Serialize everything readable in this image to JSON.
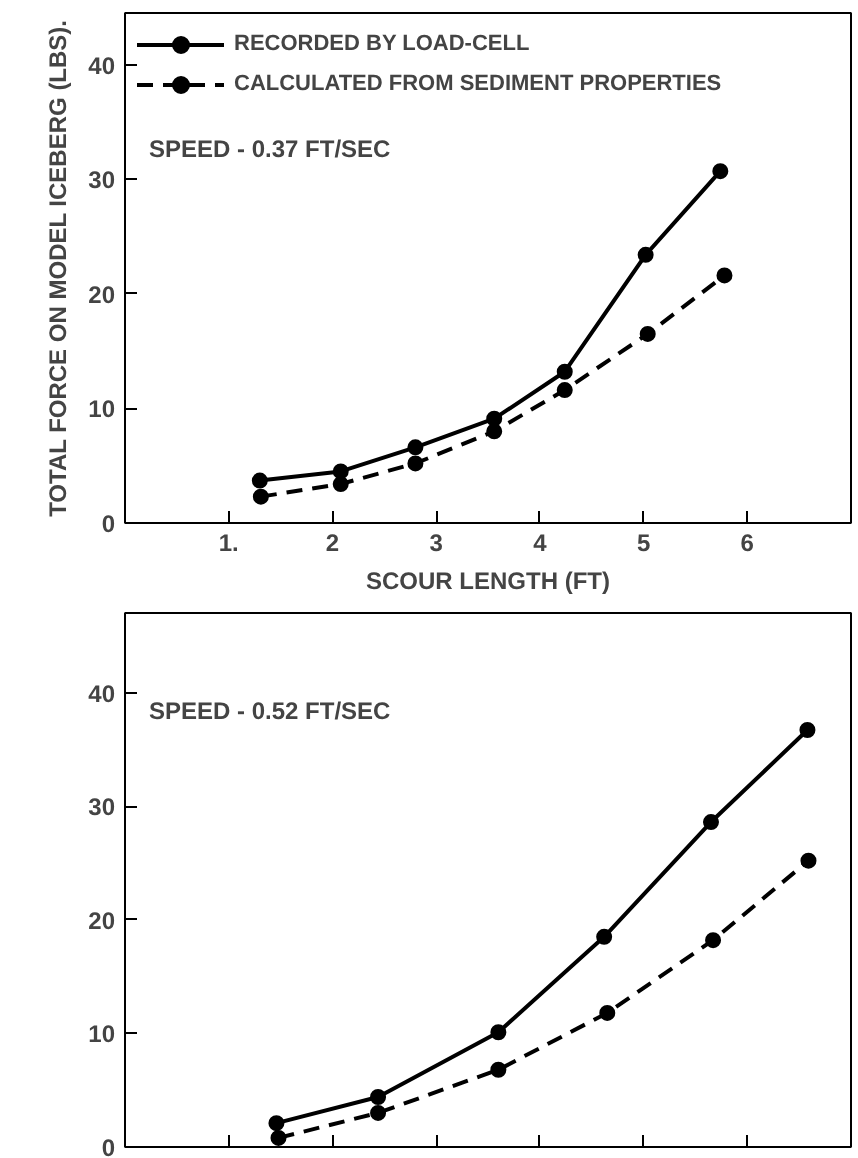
{
  "chart_data": [
    {
      "type": "line",
      "title": null,
      "xlabel": "SCOUR LENGTH (FT)",
      "ylabel": "TOTAL FORCE ON MODEL ICEBERG (LBS).",
      "annotations": [
        "SPEED - 0.37 FT/SEC"
      ],
      "xlim": [
        0,
        7
      ],
      "ylim": [
        0,
        44.5
      ],
      "xticks": [
        {
          "value": 1,
          "label": "1."
        },
        2,
        3,
        4,
        5,
        6
      ],
      "yticks": [
        0,
        10,
        20,
        30,
        40
      ],
      "grid": false,
      "legend": "top left",
      "marker": "circle",
      "series": [
        {
          "name": "RECORDED BY LOAD-CELL",
          "color": "#000000",
          "line_style": "solid",
          "x": [
            1.3,
            2.08,
            2.8,
            3.56,
            4.24,
            5.02,
            5.74
          ],
          "values": [
            3.7,
            4.5,
            6.6,
            9.1,
            13.2,
            23.4,
            30.7
          ]
        },
        {
          "name": "CALCULATED FROM SEDIMENT PROPERTIES",
          "color": "#000000",
          "line_style": "dashed",
          "x": [
            1.31,
            2.08,
            2.8,
            3.56,
            4.24,
            5.04,
            5.78
          ],
          "values": [
            2.3,
            3.4,
            5.2,
            8.0,
            11.6,
            16.5,
            21.6
          ]
        }
      ]
    },
    {
      "type": "line",
      "annotations": [
        "SPEED - 0.52 FT/SEC"
      ],
      "xlim": [
        0,
        7
      ],
      "ylim": [
        0,
        47
      ],
      "xticks": [
        1,
        2,
        3,
        4,
        5,
        6
      ],
      "yticks": [
        0,
        10,
        20,
        30,
        40
      ],
      "grid": false,
      "tick_labels": "y",
      "marker": "circle",
      "series": [
        {
          "color": "#000000",
          "line_style": "solid",
          "x": [
            1.46,
            2.44,
            3.6,
            4.62,
            5.65,
            6.58
          ],
          "values": [
            2.1,
            4.4,
            10.1,
            18.5,
            28.6,
            36.7
          ]
        },
        {
          "color": "#000000",
          "line_style": "dashed",
          "x": [
            1.48,
            2.44,
            3.6,
            4.65,
            5.67,
            6.59
          ],
          "values": [
            0.8,
            3.0,
            6.8,
            11.8,
            18.2,
            25.2
          ]
        }
      ]
    }
  ]
}
